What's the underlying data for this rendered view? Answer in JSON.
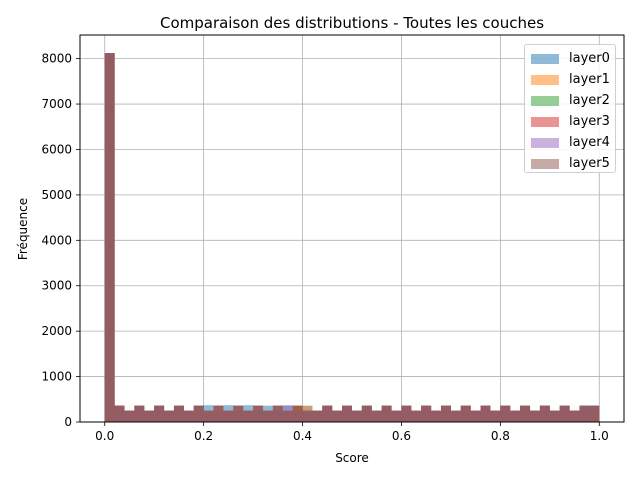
{
  "chart_data": {
    "type": "bar",
    "title": "Comparaison des distributions - Toutes les couches",
    "xlabel": "Score",
    "ylabel": "Fréquence",
    "xlim": [
      -0.05,
      1.05
    ],
    "ylim": [
      0,
      8520
    ],
    "xticks": [
      "0.0",
      "0.2",
      "0.4",
      "0.6",
      "0.8",
      "1.0"
    ],
    "yticks": [
      "0",
      "1000",
      "2000",
      "3000",
      "4000",
      "5000",
      "6000",
      "7000",
      "8000"
    ],
    "grid": true,
    "legend_position": "top-right",
    "bin_width": 0.02,
    "bin_start": 0.0,
    "series": [
      {
        "name": "layer0",
        "color": "#1f77b4",
        "values": [
          8120,
          360,
          250,
          360,
          250,
          360,
          250,
          360,
          250,
          360,
          370,
          250,
          370,
          250,
          370,
          250,
          360,
          250,
          360,
          250,
          360,
          250,
          360,
          250,
          360,
          250,
          360,
          250,
          360,
          250,
          360,
          250,
          360,
          250,
          360,
          250,
          360,
          250,
          360,
          250,
          360,
          250,
          360,
          250,
          360,
          250,
          360,
          250,
          360,
          360
        ]
      },
      {
        "name": "layer1",
        "color": "#ff7f0e",
        "values": [
          8120,
          360,
          250,
          360,
          250,
          360,
          250,
          360,
          250,
          360,
          250,
          360,
          250,
          360,
          250,
          360,
          250,
          360,
          250,
          360,
          350,
          250,
          360,
          250,
          360,
          250,
          360,
          250,
          360,
          250,
          360,
          250,
          360,
          250,
          360,
          250,
          360,
          250,
          360,
          250,
          360,
          250,
          360,
          250,
          360,
          250,
          360,
          250,
          360,
          360
        ]
      },
      {
        "name": "layer2",
        "color": "#2ca02c",
        "values": [
          8120,
          360,
          250,
          360,
          250,
          360,
          250,
          360,
          250,
          360,
          250,
          360,
          250,
          360,
          250,
          360,
          250,
          360,
          250,
          360,
          250,
          250,
          360,
          250,
          360,
          250,
          360,
          250,
          360,
          250,
          360,
          250,
          360,
          250,
          360,
          250,
          360,
          250,
          360,
          250,
          360,
          250,
          360,
          250,
          360,
          250,
          360,
          250,
          360,
          360
        ]
      },
      {
        "name": "layer3",
        "color": "#d62728",
        "values": [
          8120,
          360,
          250,
          360,
          250,
          360,
          250,
          360,
          250,
          360,
          250,
          360,
          250,
          360,
          250,
          360,
          250,
          360,
          250,
          360,
          250,
          250,
          360,
          250,
          360,
          250,
          360,
          250,
          360,
          250,
          360,
          250,
          360,
          250,
          360,
          250,
          360,
          250,
          360,
          250,
          360,
          250,
          360,
          250,
          360,
          250,
          360,
          250,
          360,
          360
        ]
      },
      {
        "name": "layer4",
        "color": "#9467bd",
        "values": [
          8120,
          360,
          250,
          360,
          250,
          360,
          250,
          360,
          250,
          360,
          250,
          360,
          250,
          360,
          250,
          360,
          250,
          360,
          370,
          250,
          250,
          250,
          360,
          250,
          360,
          250,
          360,
          250,
          360,
          250,
          360,
          250,
          360,
          250,
          360,
          250,
          360,
          250,
          360,
          250,
          360,
          250,
          360,
          250,
          360,
          250,
          360,
          250,
          360,
          360
        ]
      },
      {
        "name": "layer5",
        "color": "#8c564b",
        "values": [
          8120,
          360,
          250,
          360,
          250,
          360,
          250,
          360,
          250,
          360,
          250,
          360,
          250,
          360,
          250,
          360,
          250,
          360,
          250,
          360,
          250,
          250,
          360,
          250,
          360,
          250,
          360,
          250,
          360,
          250,
          360,
          250,
          360,
          250,
          360,
          250,
          360,
          250,
          360,
          250,
          360,
          250,
          360,
          250,
          360,
          250,
          360,
          250,
          360,
          360
        ]
      }
    ]
  }
}
